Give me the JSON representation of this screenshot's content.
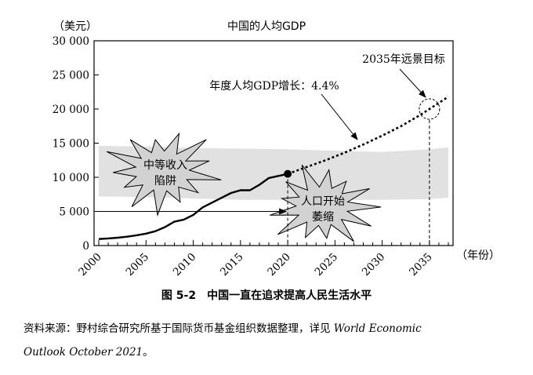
{
  "chart_data": {
    "type": "line",
    "title": "中国的人均GDP",
    "ylabel": "（美元）",
    "xlabel": "（年份）",
    "xlim": [
      2000,
      2037
    ],
    "ylim": [
      0,
      30000
    ],
    "xticks": [
      "2000",
      "2005",
      "2010",
      "2015",
      "2020",
      "2025",
      "2030",
      "2035"
    ],
    "yticks": [
      "0",
      "5 000",
      "10 000",
      "15 000",
      "20 000",
      "25 000",
      "30 000"
    ],
    "grid": false,
    "series": [
      {
        "name": "actual",
        "style": "solid",
        "color": "#000000",
        "x": [
          2000,
          2001,
          2002,
          2003,
          2004,
          2005,
          2006,
          2007,
          2008,
          2009,
          2010,
          2011,
          2012,
          2013,
          2014,
          2015,
          2016,
          2017,
          2018,
          2019,
          2020
        ],
        "y": [
          950,
          1050,
          1150,
          1300,
          1500,
          1750,
          2100,
          2700,
          3500,
          3800,
          4500,
          5600,
          6300,
          7000,
          7700,
          8100,
          8100,
          8900,
          9900,
          10200,
          10500
        ]
      },
      {
        "name": "projection",
        "style": "dotted",
        "color": "#000000",
        "x": [
          2020,
          2022,
          2024,
          2026,
          2028,
          2030,
          2032,
          2034,
          2035,
          2036,
          2037
        ],
        "y": [
          10500,
          11500,
          12500,
          13600,
          14800,
          16100,
          17500,
          19100,
          20000,
          20900,
          21800
        ]
      }
    ],
    "band": {
      "upper": [
        [
          2000,
          14600
        ],
        [
          2005,
          14500
        ],
        [
          2010,
          14300
        ],
        [
          2015,
          14200
        ],
        [
          2020,
          14100
        ],
        [
          2025,
          13900
        ],
        [
          2030,
          13700
        ],
        [
          2035,
          14100
        ],
        [
          2037,
          14400
        ]
      ],
      "lower": [
        [
          2000,
          7200
        ],
        [
          2005,
          7100
        ],
        [
          2010,
          6900
        ],
        [
          2015,
          6700
        ],
        [
          2020,
          6700
        ],
        [
          2025,
          6700
        ],
        [
          2030,
          6700
        ],
        [
          2035,
          6800
        ],
        [
          2037,
          7000
        ]
      ],
      "color": "#e1e1e1"
    },
    "arrow_y": 5000,
    "arrow_x": [
      2000,
      2020
    ],
    "vline_x": [
      2020,
      2035
    ],
    "target": {
      "x": 2035,
      "y": 20000
    },
    "marker": {
      "x": 2020,
      "y": 10500
    },
    "annotations": {
      "growth": "年度人均GDP增长：4.4%",
      "goal": "2035年远景目标",
      "trap_line1": "中等收入",
      "trap_line2": "陷阱",
      "pop_line1": "人口开始",
      "pop_line2": "萎缩"
    }
  },
  "caption": {
    "number": "图 5-2",
    "text": "中国一直在追求提高人民生活水平"
  },
  "source": {
    "prefix": "资料来源：野村综合研究所基于国际货币基金组织数据整理，详见 ",
    "title_line1": "World Economic",
    "title_line2": "Outlook October 2021",
    "suffix": "。"
  }
}
